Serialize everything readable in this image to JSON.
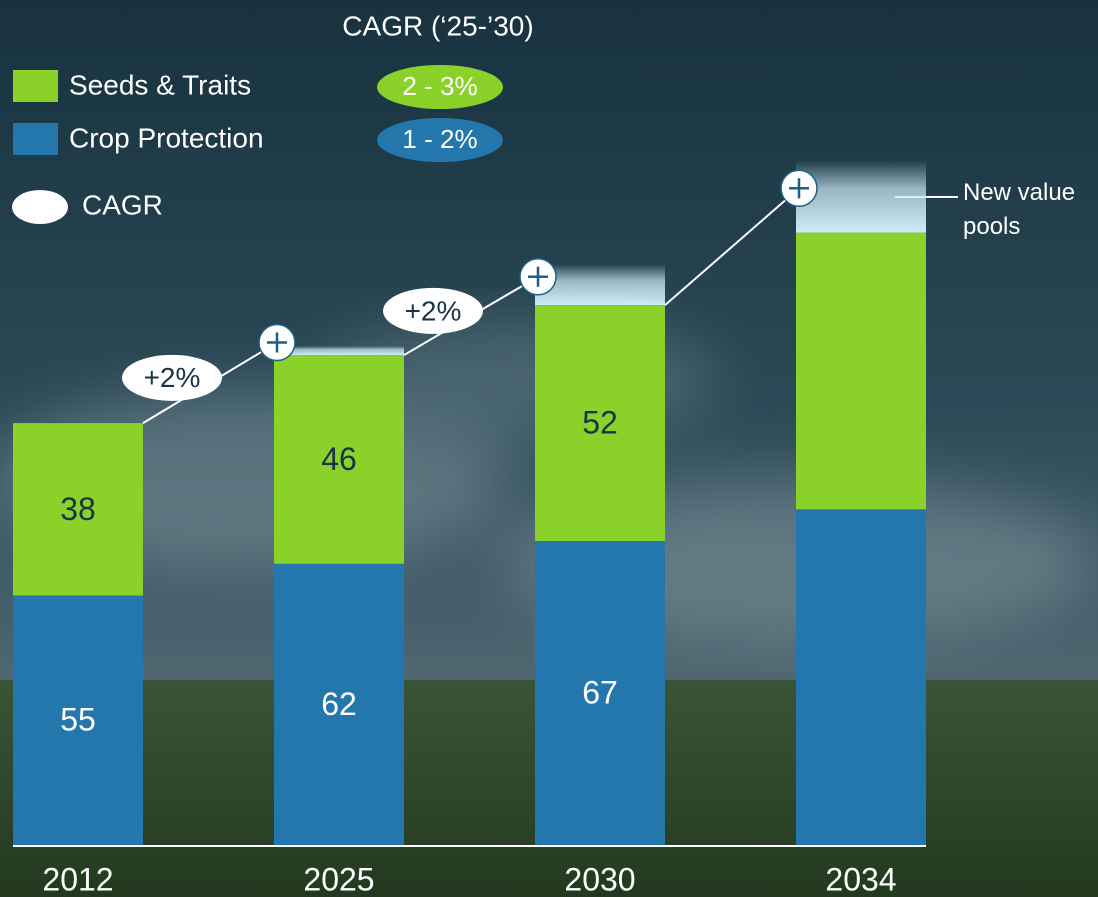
{
  "chart_data": {
    "type": "bar",
    "stacked": true,
    "categories": [
      "2012",
      "2025",
      "2030",
      "2034"
    ],
    "series": [
      {
        "name": "Crop Protection",
        "color": "#2377ad",
        "values": [
          55,
          62,
          67,
          74
        ],
        "value_labels": [
          "55",
          "62",
          "67",
          null
        ],
        "cagr": "1 - 2%"
      },
      {
        "name": "Seeds & Traits",
        "color": "#8ad22a",
        "values": [
          38,
          46,
          52,
          61
        ],
        "value_labels": [
          "38",
          "46",
          "52",
          null
        ],
        "cagr": "2 - 3%"
      },
      {
        "name": "New value pools",
        "color": "#cdeaf6",
        "values": [
          null,
          2,
          9,
          16
        ]
      }
    ],
    "cagr_title": "CAGR (‘25-’30)",
    "cagr_legend": "CAGR",
    "growth_labels": [
      "+2%",
      "+2%"
    ]
  }
}
